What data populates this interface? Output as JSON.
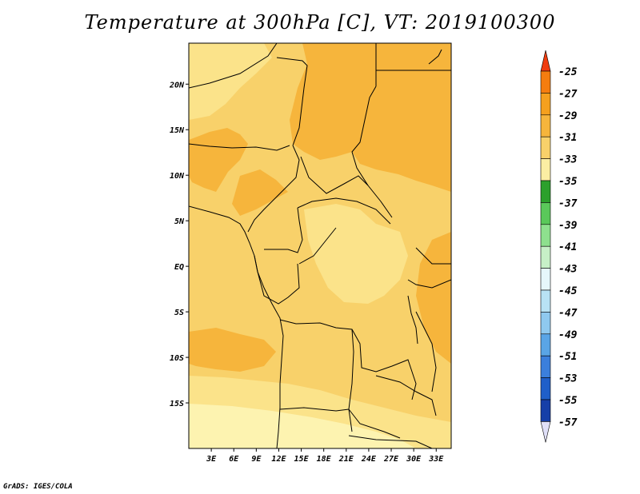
{
  "title": "Temperature at 300hPa [C], VT: 2019100300",
  "credit": "GrADS: IGES/COLA",
  "map": {
    "lat_ticks": [
      "20N",
      "15N",
      "10N",
      "5N",
      "EQ",
      "5S",
      "10S",
      "15S"
    ],
    "lat_values": [
      20,
      15,
      10,
      5,
      0,
      -5,
      -10,
      -15
    ],
    "lon_ticks": [
      "3E",
      "6E",
      "9E",
      "12E",
      "15E",
      "18E",
      "21E",
      "24E",
      "27E",
      "30E",
      "33E"
    ],
    "lon_values": [
      3,
      6,
      9,
      12,
      15,
      18,
      21,
      24,
      27,
      30,
      33
    ],
    "lat_range": [
      -20,
      24.5
    ],
    "lon_range": [
      0,
      35
    ]
  },
  "colorbar": {
    "labels": [
      "-25",
      "-27",
      "-29",
      "-31",
      "-33",
      "-35",
      "-37",
      "-39",
      "-41",
      "-43",
      "-45",
      "-47",
      "-49",
      "-51",
      "-53",
      "-55",
      "-57"
    ],
    "colors": [
      "#f05a0f",
      "#f57d0f",
      "#f5a01e",
      "#f6b53c",
      "#f8d16a",
      "#fbeea3",
      "#2ca02c",
      "#5ac85a",
      "#8ee08e",
      "#c7f0c7",
      "#e6f7fb",
      "#b8e2f4",
      "#8fc9ef",
      "#5aa5e6",
      "#3b7fdc",
      "#1f5fc9",
      "#163fa8",
      "#0f1f7a"
    ],
    "top_arrow_color": "#f03c0f",
    "bottom_arrow_color": "#e0e0f8"
  },
  "palette": {
    "c29": "#f6b53c",
    "c31": "#f8d16a",
    "c33": "#fbe38a",
    "c35": "#fdf3b0"
  }
}
